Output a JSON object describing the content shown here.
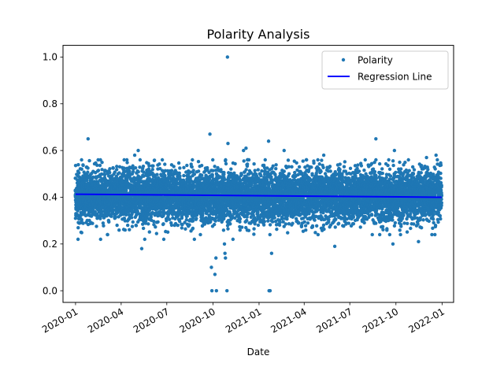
{
  "chart_data": {
    "type": "scatter",
    "title": "Polarity Analysis",
    "xlabel": "Date",
    "ylabel": "",
    "x_type": "date",
    "xlim": [
      "2019-12-07",
      "2022-01-24"
    ],
    "ylim": [
      -0.05,
      1.05
    ],
    "x_ticks": [
      "2020-01-01",
      "2020-04-01",
      "2020-07-01",
      "2020-10-01",
      "2021-01-01",
      "2021-04-01",
      "2021-07-01",
      "2021-10-01",
      "2022-01-01"
    ],
    "x_tick_labels": [
      "2020-01",
      "2020-04",
      "2020-07",
      "2020-10",
      "2021-01",
      "2021-04",
      "2021-07",
      "2021-10",
      "2022-01"
    ],
    "y_ticks": [
      0.0,
      0.2,
      0.4,
      0.6,
      0.8,
      1.0
    ],
    "y_tick_labels": [
      "0.0",
      "0.2",
      "0.4",
      "0.6",
      "0.8",
      "1.0"
    ],
    "grid": false,
    "legend": {
      "placement": "top-right",
      "entries": [
        "Polarity",
        "Regression Line"
      ]
    },
    "series": [
      {
        "name": "Polarity",
        "kind": "points",
        "color": "#1f77b4",
        "date_range": [
          "2020-01-01",
          "2021-12-31"
        ],
        "bulk_center": 0.405,
        "bulk_spread": 0.055,
        "outliers": [
          {
            "x": "2020-01-06",
            "y": 0.22
          },
          {
            "x": "2020-01-12",
            "y": 0.25
          },
          {
            "x": "2020-01-26",
            "y": 0.65
          },
          {
            "x": "2020-02-20",
            "y": 0.22
          },
          {
            "x": "2020-03-05",
            "y": 0.24
          },
          {
            "x": "2020-04-07",
            "y": 0.56
          },
          {
            "x": "2020-04-28",
            "y": 0.58
          },
          {
            "x": "2020-05-05",
            "y": 0.6
          },
          {
            "x": "2020-05-12",
            "y": 0.18
          },
          {
            "x": "2020-05-18",
            "y": 0.22
          },
          {
            "x": "2020-06-25",
            "y": 0.22
          },
          {
            "x": "2020-08-25",
            "y": 0.22
          },
          {
            "x": "2020-09-25",
            "y": 0.67
          },
          {
            "x": "2020-09-28",
            "y": 0.1
          },
          {
            "x": "2020-09-29",
            "y": 0.0
          },
          {
            "x": "2020-10-05",
            "y": 0.07
          },
          {
            "x": "2020-10-07",
            "y": 0.14
          },
          {
            "x": "2020-10-08",
            "y": 0.0
          },
          {
            "x": "2020-10-24",
            "y": 0.2
          },
          {
            "x": "2020-10-25",
            "y": 0.16
          },
          {
            "x": "2020-10-26",
            "y": 0.14
          },
          {
            "x": "2020-10-29",
            "y": 0.0
          },
          {
            "x": "2020-10-30",
            "y": 1.0
          },
          {
            "x": "2020-10-31",
            "y": 0.63
          },
          {
            "x": "2020-11-10",
            "y": 0.22
          },
          {
            "x": "2020-12-01",
            "y": 0.6
          },
          {
            "x": "2020-12-06",
            "y": 0.61
          },
          {
            "x": "2021-01-20",
            "y": 0.64
          },
          {
            "x": "2021-01-21",
            "y": 0.0
          },
          {
            "x": "2021-01-23",
            "y": 0.0
          },
          {
            "x": "2021-01-26",
            "y": 0.16
          },
          {
            "x": "2021-02-20",
            "y": 0.6
          },
          {
            "x": "2021-05-10",
            "y": 0.58
          },
          {
            "x": "2021-06-01",
            "y": 0.19
          },
          {
            "x": "2021-08-22",
            "y": 0.65
          },
          {
            "x": "2021-09-25",
            "y": 0.2
          },
          {
            "x": "2021-09-28",
            "y": 0.6
          },
          {
            "x": "2021-11-15",
            "y": 0.21
          },
          {
            "x": "2021-12-01",
            "y": 0.57
          },
          {
            "x": "2021-12-20",
            "y": 0.58
          }
        ]
      },
      {
        "name": "Regression Line",
        "kind": "line",
        "color": "#0000ff",
        "x": [
          "2020-01-01",
          "2021-12-31"
        ],
        "y": [
          0.413,
          0.4
        ]
      }
    ]
  }
}
